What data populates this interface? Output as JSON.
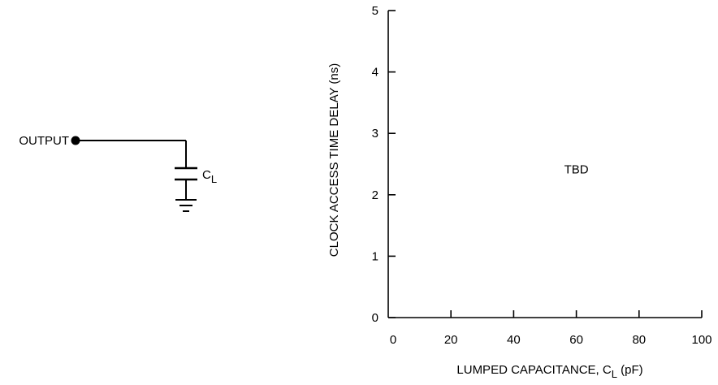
{
  "circuit": {
    "output_label": "OUTPUT",
    "cap_label_main": "C",
    "cap_label_sub": "L"
  },
  "chart_data": {
    "type": "line",
    "xlabel_main": "LUMPED CAPACITANCE, C",
    "xlabel_sub": "L",
    "xlabel_unit": " (pF)",
    "ylabel": "CLOCK ACCESS TIME DELAY (ns)",
    "xlim": [
      0,
      100
    ],
    "ylim": [
      0,
      5
    ],
    "x_ticks": [
      0,
      20,
      40,
      60,
      80,
      100
    ],
    "y_ticks": [
      0,
      1,
      2,
      3,
      4,
      5
    ],
    "grid": false,
    "series": [],
    "annotation": {
      "text": "TBD",
      "x": 60,
      "y": 2.35
    }
  }
}
